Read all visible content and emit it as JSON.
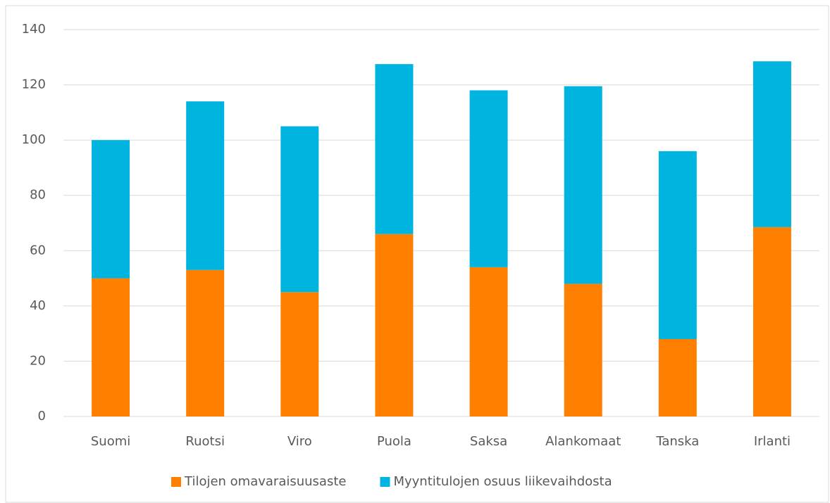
{
  "chart_data": {
    "type": "stacked_bar",
    "categories": [
      "Suomi",
      "Ruotsi",
      "Viro",
      "Puola",
      "Saksa",
      "Alankomaat",
      "Tanska",
      "Irlanti"
    ],
    "series": [
      {
        "name": "Tilojen omavaraisuusaste",
        "color": "#ff8000",
        "values": [
          50,
          53,
          45,
          66,
          54,
          48,
          28,
          68.5
        ]
      },
      {
        "name": "Myyntitulojen osuus liikevaihdosta",
        "color": "#00b4e0",
        "values": [
          50,
          61,
          60,
          61.5,
          64,
          71.5,
          68,
          60
        ]
      }
    ],
    "ylim": [
      0,
      140
    ],
    "yticks": [
      0,
      20,
      40,
      60,
      80,
      100,
      120,
      140
    ],
    "grid": true,
    "legend": "bottom"
  }
}
